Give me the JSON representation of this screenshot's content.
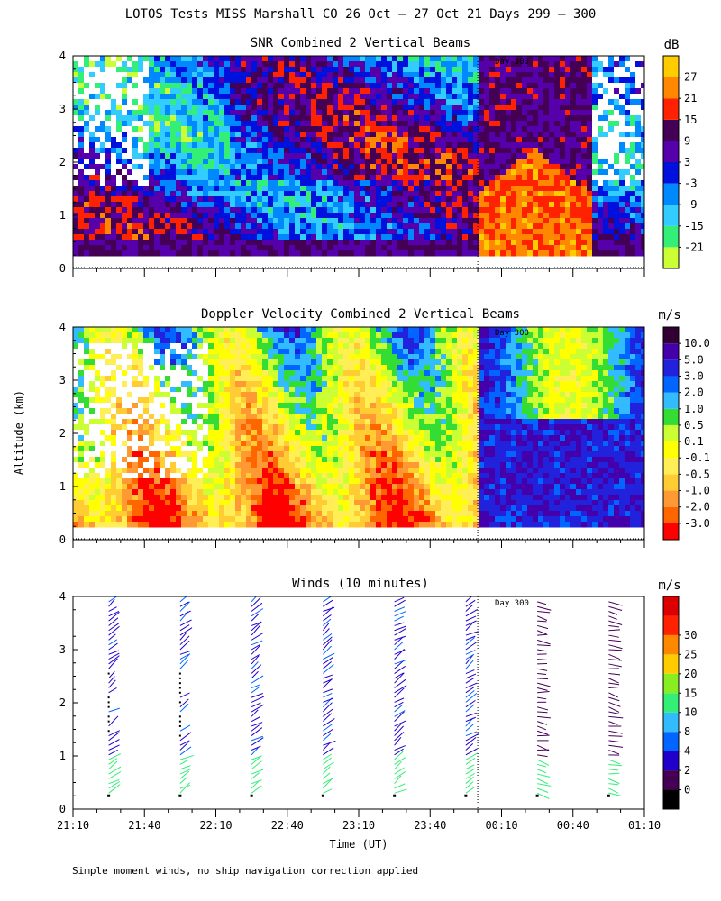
{
  "figure": {
    "title": "LOTOS Tests MISS Marshall CO  26 Oct — 27 Oct 21 Days 299 — 300",
    "ylabel": "Altitude (km)",
    "xlabel": "Time (UT)",
    "footnote": "Simple moment winds, no ship navigation correction applied",
    "day_marker": "Day 300"
  },
  "colors": {
    "snr_scale": [
      "#ccff33",
      "#33ee77",
      "#33ccff",
      "#0088ff",
      "#0011dd",
      "#5500aa",
      "#440055",
      "#ff2200",
      "#ff8800",
      "#ffcc00"
    ],
    "doppler_scale": [
      "#ff0000",
      "#ff6600",
      "#ff9933",
      "#ffcc33",
      "#ffee55",
      "#ffff00",
      "#ccff33",
      "#33dd33",
      "#33bbff",
      "#0066ff",
      "#2222dd",
      "#4400aa",
      "#330033"
    ],
    "wind_scale": [
      "#000000",
      "#440055",
      "#2200cc",
      "#0066ff",
      "#33bbff",
      "#33ee77",
      "#88ee22",
      "#ffcc00",
      "#ff8800",
      "#ff2200",
      "#dd0000"
    ]
  },
  "chart_data": [
    {
      "type": "heatmap",
      "title": "SNR Combined 2 Vertical Beams",
      "unit": "dB",
      "x_ticks": [
        "21:10",
        "21:40",
        "22:10",
        "22:40",
        "23:10",
        "23:40",
        "00:10",
        "00:40",
        "01:10"
      ],
      "y_ticks": [
        "0",
        "1",
        "2",
        "3",
        "4"
      ],
      "ylim": [
        0,
        4
      ],
      "color_levels": [
        "-21",
        "-15",
        "-9",
        "-3",
        "3",
        "9",
        "15",
        "21",
        "27"
      ],
      "day_boundary_time": "00:00",
      "min_altitude_km": 0.25
    },
    {
      "type": "heatmap",
      "title": "Doppler Velocity Combined 2 Vertical Beams",
      "unit": "m/s",
      "x_ticks": [
        "21:10",
        "21:40",
        "22:10",
        "22:40",
        "23:10",
        "23:40",
        "00:10",
        "00:40",
        "01:10"
      ],
      "y_ticks": [
        "0",
        "1",
        "2",
        "3",
        "4"
      ],
      "ylim": [
        0,
        4
      ],
      "color_levels": [
        "-3.0",
        "-2.0",
        "-1.0",
        "-0.5",
        "-0.1",
        "0.1",
        "0.5",
        "1.0",
        "2.0",
        "3.0",
        "5.0",
        "10.0"
      ],
      "day_boundary_time": "00:00",
      "min_altitude_km": 0.25
    },
    {
      "type": "scatter",
      "title": "Winds (10 minutes)",
      "unit": "m/s",
      "x_ticks": [
        "21:10",
        "21:40",
        "22:10",
        "22:40",
        "23:10",
        "23:40",
        "00:10",
        "00:40",
        "01:10"
      ],
      "y_ticks": [
        "0",
        "1",
        "2",
        "3",
        "4"
      ],
      "ylim": [
        0,
        4
      ],
      "color_levels": [
        "0",
        "2",
        "4",
        "8",
        "10",
        "15",
        "20",
        "25",
        "30"
      ],
      "profile_times": [
        "21:25",
        "21:55",
        "22:25",
        "22:55",
        "23:25",
        "23:55",
        "00:25",
        "00:55"
      ],
      "day_boundary_time": "00:00"
    }
  ]
}
